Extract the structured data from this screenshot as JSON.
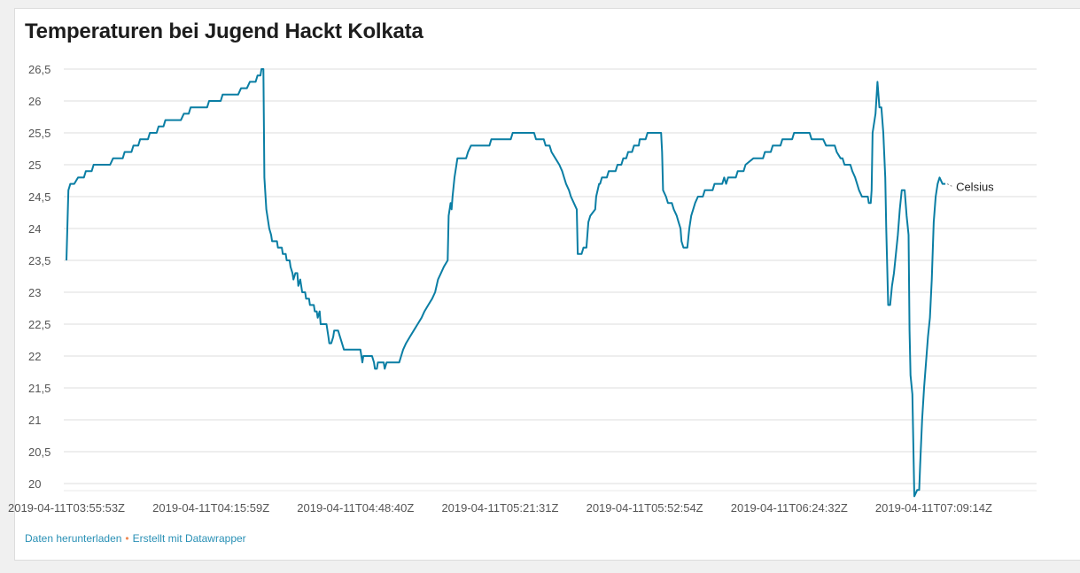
{
  "chart_data": {
    "type": "line",
    "title": "Temperaturen bei Jugend Hackt Kolkata",
    "xlabel": "",
    "ylabel": "",
    "ylim": [
      20,
      26.5
    ],
    "y_ticks": [
      "20",
      "20,5",
      "21",
      "21,5",
      "22",
      "22,5",
      "23",
      "23,5",
      "24",
      "24,5",
      "25",
      "25,5",
      "26",
      "26,5"
    ],
    "x_tick_labels": [
      "2019-04-11T03:55:53Z",
      "2019-04-11T04:15:59Z",
      "2019-04-11T04:48:40Z",
      "2019-04-11T05:21:31Z",
      "2019-04-11T05:52:54Z",
      "2019-04-11T06:24:32Z",
      "2019-04-11T07:09:14Z"
    ],
    "x_index_range": [
      0,
      1000
    ],
    "x_tick_index": [
      0,
      149,
      298,
      447,
      596,
      745,
      894
    ],
    "color": "#0a7ea4",
    "grid": true,
    "series": [
      {
        "name": "Celsius",
        "points": [
          [
            0,
            23.5
          ],
          [
            2,
            24.6
          ],
          [
            4,
            24.7
          ],
          [
            8,
            24.7
          ],
          [
            12,
            24.8
          ],
          [
            18,
            24.8
          ],
          [
            20,
            24.9
          ],
          [
            26,
            24.9
          ],
          [
            28,
            25.0
          ],
          [
            45,
            25.0
          ],
          [
            48,
            25.1
          ],
          [
            58,
            25.1
          ],
          [
            60,
            25.2
          ],
          [
            67,
            25.2
          ],
          [
            69,
            25.3
          ],
          [
            74,
            25.3
          ],
          [
            76,
            25.4
          ],
          [
            84,
            25.4
          ],
          [
            86,
            25.5
          ],
          [
            93,
            25.5
          ],
          [
            95,
            25.6
          ],
          [
            100,
            25.6
          ],
          [
            102,
            25.7
          ],
          [
            118,
            25.7
          ],
          [
            121,
            25.8
          ],
          [
            126,
            25.8
          ],
          [
            128,
            25.9
          ],
          [
            145,
            25.9
          ],
          [
            147,
            26.0
          ],
          [
            159,
            26.0
          ],
          [
            161,
            26.1
          ],
          [
            177,
            26.1
          ],
          [
            180,
            26.2
          ],
          [
            186,
            26.2
          ],
          [
            189,
            26.3
          ],
          [
            193,
            26.3
          ],
          [
            195,
            26.3
          ],
          [
            197,
            26.4
          ],
          [
            200,
            26.4
          ],
          [
            201,
            26.5
          ],
          [
            203,
            26.5
          ],
          [
            204,
            24.8
          ],
          [
            206,
            24.3
          ],
          [
            209,
            24.0
          ],
          [
            211,
            23.9
          ],
          [
            212,
            23.8
          ],
          [
            217,
            23.8
          ],
          [
            218,
            23.7
          ],
          [
            222,
            23.7
          ],
          [
            223,
            23.6
          ],
          [
            226,
            23.6
          ],
          [
            227,
            23.5
          ],
          [
            230,
            23.5
          ],
          [
            231,
            23.4
          ],
          [
            233,
            23.3
          ],
          [
            234,
            23.2
          ],
          [
            236,
            23.3
          ],
          [
            238,
            23.3
          ],
          [
            239,
            23.1
          ],
          [
            241,
            23.2
          ],
          [
            243,
            23.0
          ],
          [
            246,
            23.0
          ],
          [
            247,
            22.9
          ],
          [
            250,
            22.9
          ],
          [
            251,
            22.8
          ],
          [
            255,
            22.8
          ],
          [
            256,
            22.7
          ],
          [
            258,
            22.7
          ],
          [
            259,
            22.6
          ],
          [
            261,
            22.7
          ],
          [
            262,
            22.5
          ],
          [
            268,
            22.5
          ],
          [
            270,
            22.3
          ],
          [
            271,
            22.2
          ],
          [
            273,
            22.2
          ],
          [
            275,
            22.3
          ],
          [
            276,
            22.4
          ],
          [
            280,
            22.4
          ],
          [
            282,
            22.3
          ],
          [
            284,
            22.2
          ],
          [
            286,
            22.1
          ],
          [
            303,
            22.1
          ],
          [
            305,
            21.9
          ],
          [
            306,
            22.0
          ],
          [
            315,
            22.0
          ],
          [
            317,
            21.9
          ],
          [
            318,
            21.8
          ],
          [
            320,
            21.8
          ],
          [
            321,
            21.9
          ],
          [
            327,
            21.9
          ],
          [
            328,
            21.8
          ],
          [
            330,
            21.9
          ],
          [
            343,
            21.9
          ],
          [
            345,
            22.0
          ],
          [
            347,
            22.1
          ],
          [
            350,
            22.2
          ],
          [
            354,
            22.3
          ],
          [
            358,
            22.4
          ],
          [
            362,
            22.5
          ],
          [
            366,
            22.6
          ],
          [
            369,
            22.7
          ],
          [
            373,
            22.8
          ],
          [
            377,
            22.9
          ],
          [
            380,
            23.0
          ],
          [
            383,
            23.2
          ],
          [
            386,
            23.3
          ],
          [
            389,
            23.4
          ],
          [
            393,
            23.5
          ],
          [
            394,
            24.2
          ],
          [
            396,
            24.4
          ],
          [
            397,
            24.3
          ],
          [
            398,
            24.5
          ],
          [
            400,
            24.8
          ],
          [
            402,
            25.0
          ],
          [
            403,
            25.1
          ],
          [
            412,
            25.1
          ],
          [
            414,
            25.2
          ],
          [
            417,
            25.3
          ],
          [
            436,
            25.3
          ],
          [
            438,
            25.4
          ],
          [
            458,
            25.4
          ],
          [
            460,
            25.5
          ],
          [
            482,
            25.5
          ],
          [
            484,
            25.4
          ],
          [
            492,
            25.4
          ],
          [
            494,
            25.3
          ],
          [
            498,
            25.3
          ],
          [
            500,
            25.2
          ],
          [
            504,
            25.1
          ],
          [
            508,
            25.0
          ],
          [
            511,
            24.9
          ],
          [
            513,
            24.8
          ],
          [
            515,
            24.7
          ],
          [
            518,
            24.6
          ],
          [
            520,
            24.5
          ],
          [
            523,
            24.4
          ],
          [
            526,
            24.3
          ],
          [
            527,
            23.6
          ],
          [
            531,
            23.6
          ],
          [
            533,
            23.7
          ],
          [
            536,
            23.7
          ],
          [
            538,
            24.1
          ],
          [
            540,
            24.2
          ],
          [
            545,
            24.3
          ],
          [
            546,
            24.5
          ],
          [
            549,
            24.7
          ],
          [
            550,
            24.7
          ],
          [
            552,
            24.8
          ],
          [
            557,
            24.8
          ],
          [
            559,
            24.9
          ],
          [
            566,
            24.9
          ],
          [
            568,
            25.0
          ],
          [
            572,
            25.0
          ],
          [
            574,
            25.1
          ],
          [
            577,
            25.1
          ],
          [
            579,
            25.2
          ],
          [
            583,
            25.2
          ],
          [
            585,
            25.3
          ],
          [
            590,
            25.3
          ],
          [
            591,
            25.4
          ],
          [
            597,
            25.4
          ],
          [
            599,
            25.5
          ],
          [
            613,
            25.5
          ],
          [
            614,
            25.2
          ],
          [
            615,
            24.6
          ],
          [
            618,
            24.5
          ],
          [
            620,
            24.4
          ],
          [
            624,
            24.4
          ],
          [
            626,
            24.3
          ],
          [
            629,
            24.2
          ],
          [
            631,
            24.1
          ],
          [
            633,
            24.0
          ],
          [
            634,
            23.8
          ],
          [
            636,
            23.7
          ],
          [
            640,
            23.7
          ],
          [
            642,
            24.0
          ],
          [
            644,
            24.2
          ],
          [
            646,
            24.3
          ],
          [
            648,
            24.4
          ],
          [
            651,
            24.5
          ],
          [
            656,
            24.5
          ],
          [
            658,
            24.6
          ],
          [
            666,
            24.6
          ],
          [
            668,
            24.7
          ],
          [
            676,
            24.7
          ],
          [
            678,
            24.8
          ],
          [
            680,
            24.7
          ],
          [
            682,
            24.8
          ],
          [
            690,
            24.8
          ],
          [
            692,
            24.9
          ],
          [
            698,
            24.9
          ],
          [
            700,
            25.0
          ],
          [
            708,
            25.1
          ],
          [
            718,
            25.1
          ],
          [
            720,
            25.2
          ],
          [
            726,
            25.2
          ],
          [
            728,
            25.3
          ],
          [
            736,
            25.3
          ],
          [
            738,
            25.4
          ],
          [
            748,
            25.4
          ],
          [
            750,
            25.5
          ],
          [
            766,
            25.5
          ],
          [
            768,
            25.4
          ],
          [
            780,
            25.4
          ],
          [
            783,
            25.3
          ],
          [
            792,
            25.3
          ],
          [
            794,
            25.2
          ],
          [
            798,
            25.1
          ],
          [
            800,
            25.1
          ],
          [
            802,
            25.0
          ],
          [
            808,
            25.0
          ],
          [
            810,
            24.9
          ],
          [
            813,
            24.8
          ],
          [
            815,
            24.7
          ],
          [
            817,
            24.6
          ],
          [
            820,
            24.5
          ],
          [
            826,
            24.5
          ],
          [
            827,
            24.4
          ],
          [
            829,
            24.4
          ],
          [
            830,
            24.6
          ],
          [
            831,
            25.5
          ],
          [
            834,
            25.8
          ],
          [
            836,
            26.3
          ],
          [
            838,
            25.9
          ],
          [
            840,
            25.9
          ],
          [
            842,
            25.5
          ],
          [
            844,
            24.8
          ],
          [
            845,
            24.0
          ],
          [
            847,
            22.8
          ],
          [
            849,
            22.8
          ],
          [
            851,
            23.1
          ],
          [
            853,
            23.3
          ],
          [
            855,
            23.6
          ],
          [
            857,
            23.9
          ],
          [
            859,
            24.3
          ],
          [
            861,
            24.6
          ],
          [
            864,
            24.6
          ],
          [
            866,
            24.2
          ],
          [
            868,
            23.9
          ],
          [
            869,
            22.4
          ],
          [
            870,
            21.7
          ],
          [
            872,
            21.4
          ],
          [
            874,
            19.8
          ],
          [
            877,
            19.9
          ],
          [
            879,
            19.9
          ],
          [
            880,
            20.3
          ],
          [
            882,
            21.0
          ],
          [
            884,
            21.5
          ],
          [
            886,
            21.9
          ],
          [
            888,
            22.3
          ],
          [
            890,
            22.6
          ],
          [
            892,
            23.2
          ],
          [
            894,
            24.1
          ],
          [
            896,
            24.5
          ],
          [
            898,
            24.7
          ],
          [
            900,
            24.8
          ],
          [
            903,
            24.7
          ],
          [
            906,
            24.7
          ]
        ]
      }
    ]
  },
  "footer": {
    "download_label": "Daten herunterladen",
    "separator": "•",
    "credit_label": "Erstellt mit Datawrapper"
  }
}
